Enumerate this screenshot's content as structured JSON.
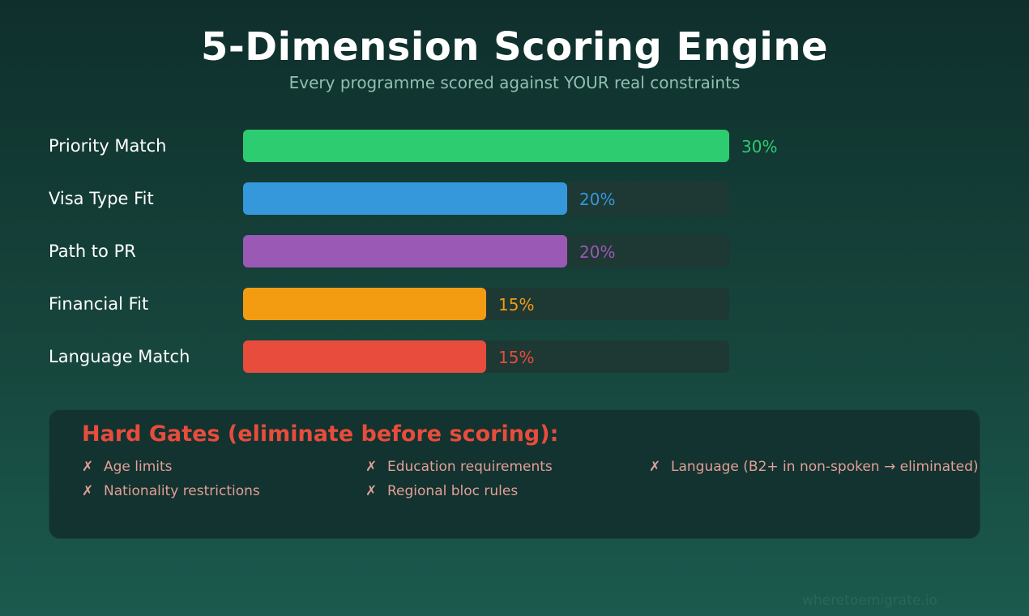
{
  "header": {
    "title": "5-Dimension Scoring Engine",
    "subtitle": "Every programme scored against YOUR real constraints"
  },
  "chart_data": {
    "type": "bar",
    "orientation": "horizontal",
    "categories": [
      "Priority Match",
      "Visa Type Fit",
      "Path to PR",
      "Financial Fit",
      "Language Match"
    ],
    "values": [
      30,
      20,
      20,
      15,
      15
    ],
    "value_labels": [
      "30%",
      "20%",
      "20%",
      "15%",
      "15%"
    ],
    "colors": [
      "#2ecc71",
      "#3498db",
      "#9b59b6",
      "#f39c12",
      "#e74c3c"
    ],
    "xlim": [
      0,
      30
    ],
    "track_color": "#1e3834",
    "grid": false
  },
  "gates": {
    "title": "Hard Gates (eliminate before scoring):",
    "marker": "✗",
    "items": [
      "Age limits",
      "Education requirements",
      "Language (B2+ in non-spoken → eliminated)",
      "Nationality restrictions",
      "Regional bloc rules"
    ]
  },
  "footer": {
    "brand": "wheretoemigrate.io"
  }
}
